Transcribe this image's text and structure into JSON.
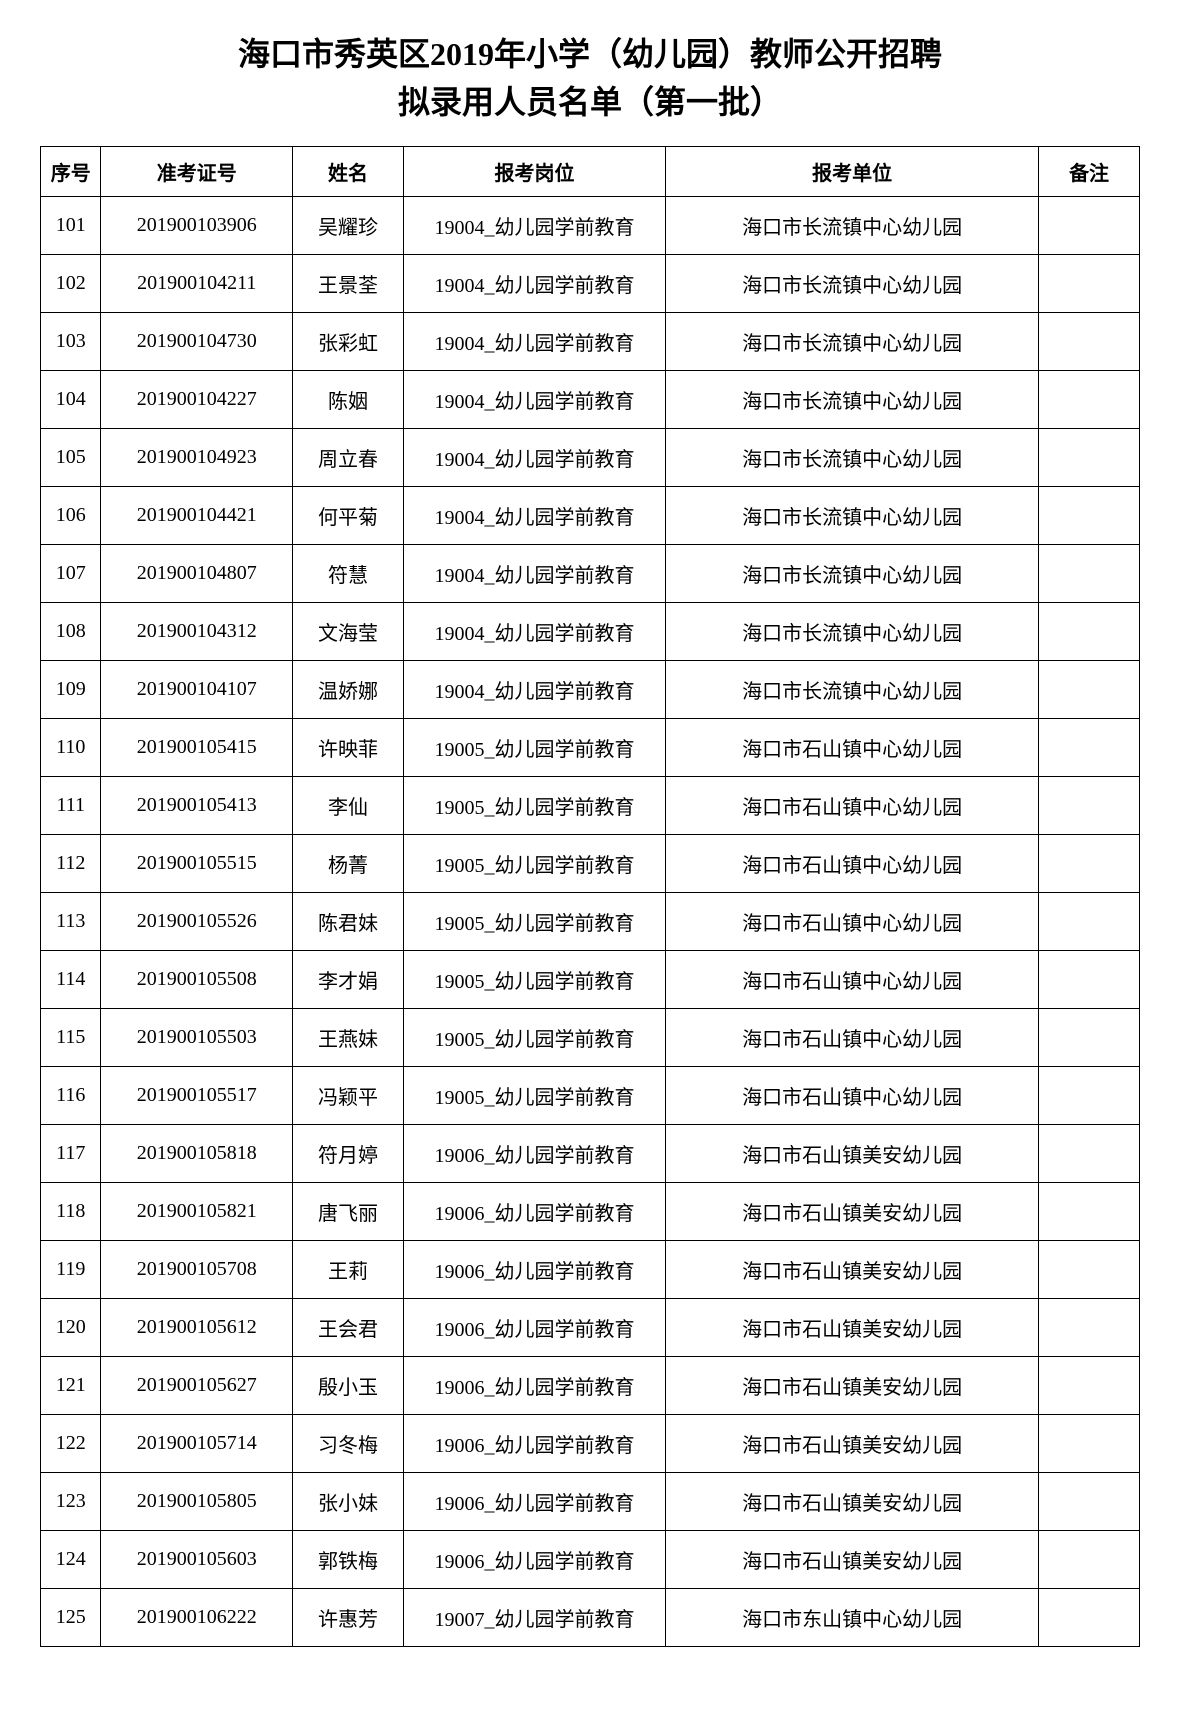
{
  "title_line1": "海口市秀英区2019年小学（幼儿园）教师公开招聘",
  "title_line2": "拟录用人员名单（第一批）",
  "headers": {
    "seq": "序号",
    "exam_id": "准考证号",
    "name": "姓名",
    "position": "报考岗位",
    "unit": "报考单位",
    "remark": "备注"
  },
  "rows": [
    {
      "seq": "101",
      "exam_id": "201900103906",
      "name": "吴耀珍",
      "position": "19004_幼儿园学前教育",
      "unit": "海口市长流镇中心幼儿园",
      "remark": ""
    },
    {
      "seq": "102",
      "exam_id": "201900104211",
      "name": "王景荃",
      "position": "19004_幼儿园学前教育",
      "unit": "海口市长流镇中心幼儿园",
      "remark": ""
    },
    {
      "seq": "103",
      "exam_id": "201900104730",
      "name": "张彩虹",
      "position": "19004_幼儿园学前教育",
      "unit": "海口市长流镇中心幼儿园",
      "remark": ""
    },
    {
      "seq": "104",
      "exam_id": "201900104227",
      "name": "陈姻",
      "position": "19004_幼儿园学前教育",
      "unit": "海口市长流镇中心幼儿园",
      "remark": ""
    },
    {
      "seq": "105",
      "exam_id": "201900104923",
      "name": "周立春",
      "position": "19004_幼儿园学前教育",
      "unit": "海口市长流镇中心幼儿园",
      "remark": ""
    },
    {
      "seq": "106",
      "exam_id": "201900104421",
      "name": "何平菊",
      "position": "19004_幼儿园学前教育",
      "unit": "海口市长流镇中心幼儿园",
      "remark": ""
    },
    {
      "seq": "107",
      "exam_id": "201900104807",
      "name": "符慧",
      "position": "19004_幼儿园学前教育",
      "unit": "海口市长流镇中心幼儿园",
      "remark": ""
    },
    {
      "seq": "108",
      "exam_id": "201900104312",
      "name": "文海莹",
      "position": "19004_幼儿园学前教育",
      "unit": "海口市长流镇中心幼儿园",
      "remark": ""
    },
    {
      "seq": "109",
      "exam_id": "201900104107",
      "name": "温娇娜",
      "position": "19004_幼儿园学前教育",
      "unit": "海口市长流镇中心幼儿园",
      "remark": ""
    },
    {
      "seq": "110",
      "exam_id": "201900105415",
      "name": "许映菲",
      "position": "19005_幼儿园学前教育",
      "unit": "海口市石山镇中心幼儿园",
      "remark": ""
    },
    {
      "seq": "111",
      "exam_id": "201900105413",
      "name": "李仙",
      "position": "19005_幼儿园学前教育",
      "unit": "海口市石山镇中心幼儿园",
      "remark": ""
    },
    {
      "seq": "112",
      "exam_id": "201900105515",
      "name": "杨菁",
      "position": "19005_幼儿园学前教育",
      "unit": "海口市石山镇中心幼儿园",
      "remark": ""
    },
    {
      "seq": "113",
      "exam_id": "201900105526",
      "name": "陈君妹",
      "position": "19005_幼儿园学前教育",
      "unit": "海口市石山镇中心幼儿园",
      "remark": ""
    },
    {
      "seq": "114",
      "exam_id": "201900105508",
      "name": "李才娟",
      "position": "19005_幼儿园学前教育",
      "unit": "海口市石山镇中心幼儿园",
      "remark": ""
    },
    {
      "seq": "115",
      "exam_id": "201900105503",
      "name": "王燕妹",
      "position": "19005_幼儿园学前教育",
      "unit": "海口市石山镇中心幼儿园",
      "remark": ""
    },
    {
      "seq": "116",
      "exam_id": "201900105517",
      "name": "冯颖平",
      "position": "19005_幼儿园学前教育",
      "unit": "海口市石山镇中心幼儿园",
      "remark": ""
    },
    {
      "seq": "117",
      "exam_id": "201900105818",
      "name": "符月婷",
      "position": "19006_幼儿园学前教育",
      "unit": "海口市石山镇美安幼儿园",
      "remark": ""
    },
    {
      "seq": "118",
      "exam_id": "201900105821",
      "name": "唐飞丽",
      "position": "19006_幼儿园学前教育",
      "unit": "海口市石山镇美安幼儿园",
      "remark": ""
    },
    {
      "seq": "119",
      "exam_id": "201900105708",
      "name": "王莉",
      "position": "19006_幼儿园学前教育",
      "unit": "海口市石山镇美安幼儿园",
      "remark": ""
    },
    {
      "seq": "120",
      "exam_id": "201900105612",
      "name": "王会君",
      "position": "19006_幼儿园学前教育",
      "unit": "海口市石山镇美安幼儿园",
      "remark": ""
    },
    {
      "seq": "121",
      "exam_id": "201900105627",
      "name": "殷小玉",
      "position": "19006_幼儿园学前教育",
      "unit": "海口市石山镇美安幼儿园",
      "remark": ""
    },
    {
      "seq": "122",
      "exam_id": "201900105714",
      "name": "习冬梅",
      "position": "19006_幼儿园学前教育",
      "unit": "海口市石山镇美安幼儿园",
      "remark": ""
    },
    {
      "seq": "123",
      "exam_id": "201900105805",
      "name": "张小妹",
      "position": "19006_幼儿园学前教育",
      "unit": "海口市石山镇美安幼儿园",
      "remark": ""
    },
    {
      "seq": "124",
      "exam_id": "201900105603",
      "name": "郭铁梅",
      "position": "19006_幼儿园学前教育",
      "unit": "海口市石山镇美安幼儿园",
      "remark": ""
    },
    {
      "seq": "125",
      "exam_id": "201900106222",
      "name": "许惠芳",
      "position": "19007_幼儿园学前教育",
      "unit": "海口市东山镇中心幼儿园",
      "remark": ""
    }
  ]
}
